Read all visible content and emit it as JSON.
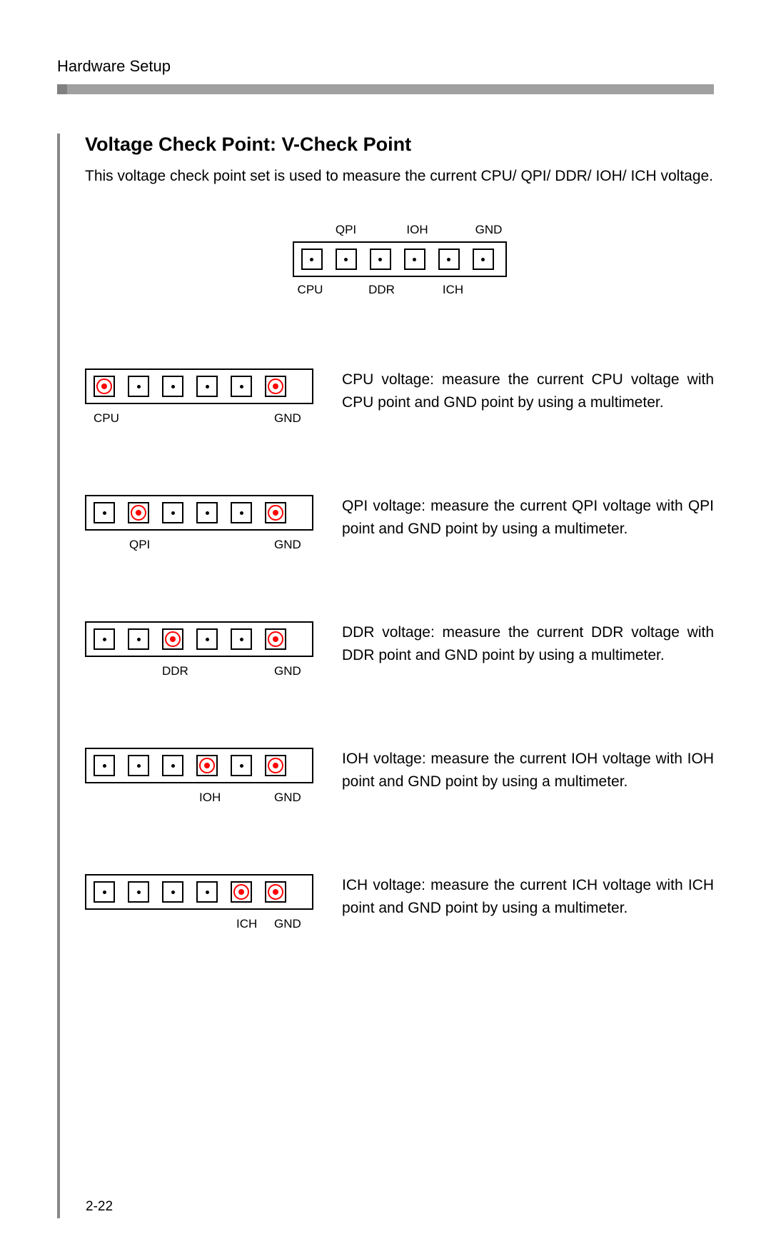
{
  "header": {
    "title": "Hardware Setup"
  },
  "section": {
    "title": "Voltage Check Point: V-Check Point",
    "intro": "This voltage check point set is used to measure the current CPU/ QPI/ DDR/ IOH/ ICH voltage."
  },
  "overview": {
    "top_labels": [
      "",
      "QPI",
      "",
      "IOH",
      "",
      "GND"
    ],
    "bottom_labels": [
      "CPU",
      "",
      "DDR",
      "",
      "ICH",
      ""
    ],
    "pin_count": 6
  },
  "rows": [
    {
      "highlight_index": 0,
      "label_a": "CPU",
      "label_a_pos": 12,
      "label_b": "GND",
      "label_b_pos": 265,
      "desc": "CPU voltage: measure the current CPU voltage with CPU point and GND point by using a multimeter."
    },
    {
      "highlight_index": 1,
      "label_a": "QPI",
      "label_a_pos": 62,
      "label_b": "GND",
      "label_b_pos": 265,
      "desc": "QPI voltage: measure the current QPI voltage with QPI point and GND point by using a multimeter."
    },
    {
      "highlight_index": 2,
      "label_a": "DDR",
      "label_a_pos": 108,
      "label_b": "GND",
      "label_b_pos": 265,
      "desc": "DDR voltage: measure the current DDR voltage with DDR point and GND point by using a multimeter."
    },
    {
      "highlight_index": 3,
      "label_a": "IOH",
      "label_a_pos": 160,
      "label_b": "GND",
      "label_b_pos": 265,
      "desc": "IOH voltage: measure the current IOH voltage with IOH point and GND point by using a multimeter."
    },
    {
      "highlight_index": 4,
      "label_a": "ICH",
      "label_a_pos": 212,
      "label_b": "GND",
      "label_b_pos": 265,
      "desc": "ICH voltage: measure the current ICH voltage with ICH point and GND point by using a multimeter."
    }
  ],
  "page_number": "2-22",
  "colors": {
    "highlight": "#ff0000",
    "border": "#000000",
    "rule": "#a0a0a0"
  }
}
